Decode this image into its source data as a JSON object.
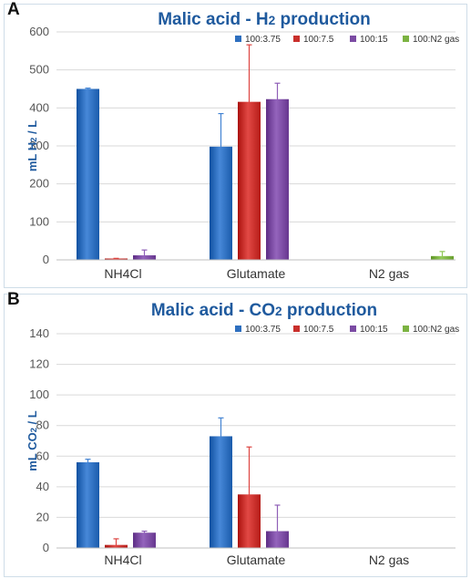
{
  "chart_data": [
    {
      "panel": "A",
      "type": "bar",
      "title_parts": [
        "Malic acid - H",
        "2",
        " production"
      ],
      "ylabel_parts": [
        "mL H",
        "2",
        " / L"
      ],
      "categories": [
        "NH4Cl",
        "Glutamate",
        "N2 gas"
      ],
      "ylim": [
        0,
        600
      ],
      "yticks": [
        0,
        100,
        200,
        300,
        400,
        500,
        600
      ],
      "legend_position": "top-right",
      "grid": "horizontal",
      "series": [
        {
          "name": "100:3.75",
          "color": "#2e6fbf",
          "values": [
            450,
            298,
            null
          ],
          "errors": [
            2,
            87,
            null
          ]
        },
        {
          "name": "100:7.5",
          "color": "#c9302c",
          "values": [
            1,
            416,
            null
          ],
          "errors": [
            3,
            150,
            null
          ]
        },
        {
          "name": "100:15",
          "color": "#7b4ba3",
          "values": [
            12,
            423,
            null
          ],
          "errors": [
            14,
            42,
            null
          ]
        },
        {
          "name": "100:N2 gas",
          "color": "#7cb342",
          "values": [
            null,
            null,
            10
          ],
          "errors": [
            null,
            null,
            12
          ]
        }
      ]
    },
    {
      "panel": "B",
      "type": "bar",
      "title_parts": [
        "Malic acid - CO",
        "2",
        " production"
      ],
      "ylabel_parts": [
        "mL CO",
        "2",
        " / L"
      ],
      "categories": [
        "NH4Cl",
        "Glutamate",
        "N2 gas"
      ],
      "ylim": [
        0,
        140
      ],
      "yticks": [
        0,
        20,
        40,
        60,
        80,
        100,
        120,
        140
      ],
      "legend_position": "top-right",
      "grid": "horizontal",
      "series": [
        {
          "name": "100:3.75",
          "color": "#2e6fbf",
          "values": [
            56,
            73,
            null
          ],
          "errors": [
            2,
            12,
            null
          ]
        },
        {
          "name": "100:7.5",
          "color": "#c9302c",
          "values": [
            2,
            35,
            null
          ],
          "errors": [
            4,
            31,
            null
          ]
        },
        {
          "name": "100:15",
          "color": "#7b4ba3",
          "values": [
            10,
            11,
            null
          ],
          "errors": [
            1,
            17,
            null
          ]
        },
        {
          "name": "100:N2 gas",
          "color": "#7cb342",
          "values": [
            null,
            null,
            null
          ],
          "errors": [
            null,
            null,
            null
          ]
        }
      ]
    }
  ]
}
